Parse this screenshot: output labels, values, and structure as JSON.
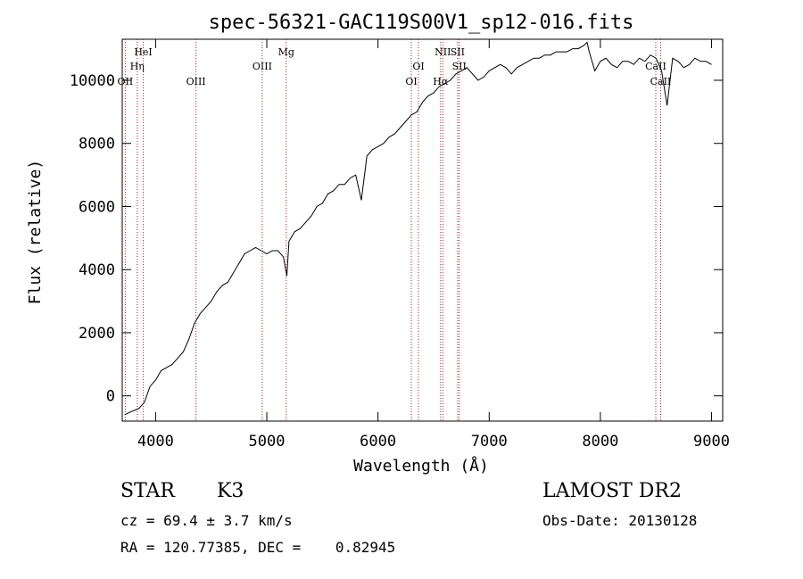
{
  "chart_data": {
    "type": "line",
    "title": "spec-56321-GAC119S00V1_sp12-016.fits",
    "xlabel": "Wavelength (Å)",
    "ylabel": "Flux (relative)",
    "xlim": [
      3700,
      9100
    ],
    "ylim": [
      -800,
      11300
    ],
    "xticks": [
      4000,
      5000,
      6000,
      7000,
      8000,
      9000
    ],
    "yticks": [
      0,
      2000,
      4000,
      6000,
      8000,
      10000
    ],
    "grid": false,
    "series": [
      {
        "color": "#000000",
        "x": [
          3720,
          3780,
          3850,
          3900,
          3950,
          4000,
          4050,
          4100,
          4150,
          4200,
          4250,
          4300,
          4350,
          4400,
          4450,
          4500,
          4550,
          4600,
          4650,
          4700,
          4750,
          4800,
          4850,
          4900,
          4950,
          5000,
          5050,
          5100,
          5150,
          5180,
          5200,
          5250,
          5300,
          5350,
          5400,
          5450,
          5500,
          5550,
          5600,
          5650,
          5700,
          5750,
          5800,
          5850,
          5900,
          5950,
          6000,
          6050,
          6100,
          6150,
          6200,
          6250,
          6300,
          6350,
          6400,
          6450,
          6500,
          6550,
          6600,
          6650,
          6700,
          6750,
          6800,
          6850,
          6900,
          6950,
          7000,
          7050,
          7100,
          7150,
          7200,
          7250,
          7300,
          7350,
          7400,
          7450,
          7500,
          7550,
          7600,
          7650,
          7700,
          7750,
          7800,
          7850,
          7880,
          7900,
          7950,
          8000,
          8050,
          8100,
          8150,
          8200,
          8250,
          8300,
          8350,
          8400,
          8450,
          8500,
          8550,
          8600,
          8650,
          8700,
          8750,
          8800,
          8850,
          8900,
          8950,
          9000
        ],
        "y": [
          -600,
          -500,
          -400,
          -200,
          300,
          500,
          800,
          900,
          1000,
          1200,
          1400,
          1800,
          2300,
          2600,
          2800,
          3000,
          3300,
          3500,
          3600,
          3900,
          4200,
          4500,
          4600,
          4700,
          4600,
          4500,
          4600,
          4600,
          4400,
          3800,
          4900,
          5200,
          5300,
          5500,
          5700,
          6000,
          6100,
          6400,
          6500,
          6700,
          6700,
          6900,
          7000,
          6200,
          7600,
          7800,
          7900,
          8000,
          8200,
          8300,
          8500,
          8700,
          8900,
          9000,
          9300,
          9500,
          9600,
          9800,
          9900,
          10000,
          10200,
          10300,
          10400,
          10200,
          10000,
          10100,
          10300,
          10400,
          10500,
          10400,
          10200,
          10400,
          10500,
          10600,
          10700,
          10700,
          10800,
          10800,
          10900,
          10900,
          10900,
          11000,
          11000,
          11100,
          11200,
          10900,
          10300,
          10600,
          10700,
          10500,
          10400,
          10600,
          10600,
          10500,
          10700,
          10600,
          10800,
          10700,
          10300,
          9200,
          10700,
          10600,
          10400,
          10500,
          10700,
          10600,
          10600,
          10500
        ]
      }
    ],
    "lines": [
      {
        "name": "Hη",
        "x": 3835,
        "row": 2
      },
      {
        "name": "HeI",
        "x": 3889,
        "row": 1
      },
      {
        "name": "OII",
        "x": 3727,
        "row": 3
      },
      {
        "name": "OIII",
        "x": 4363,
        "row": 3
      },
      {
        "name": "OIII",
        "x": 4959,
        "row": 2
      },
      {
        "name": "Mg",
        "x": 5175,
        "row": 1
      },
      {
        "name": "OI",
        "x": 6300,
        "row": 3
      },
      {
        "name": "OI",
        "x": 6364,
        "row": 2
      },
      {
        "name": "NII",
        "x": 6583,
        "row": 1
      },
      {
        "name": "SII",
        "x": 6716,
        "row": 1
      },
      {
        "name": "SII",
        "x": 6731,
        "row": 2
      },
      {
        "name": "Hα",
        "x": 6563,
        "row": 3
      },
      {
        "name": "CaII",
        "x": 8498,
        "row": 2
      },
      {
        "name": "CaII",
        "x": 8542,
        "row": 3
      }
    ]
  },
  "info": {
    "class_label": "STAR",
    "subclass": "K3",
    "survey": "LAMOST DR2",
    "redshift_text": "cz = 69.4 ± 3.7 km/s",
    "obs_date": "Obs-Date: 20130128",
    "coords": "RA = 120.77385, DEC =    0.82945"
  }
}
